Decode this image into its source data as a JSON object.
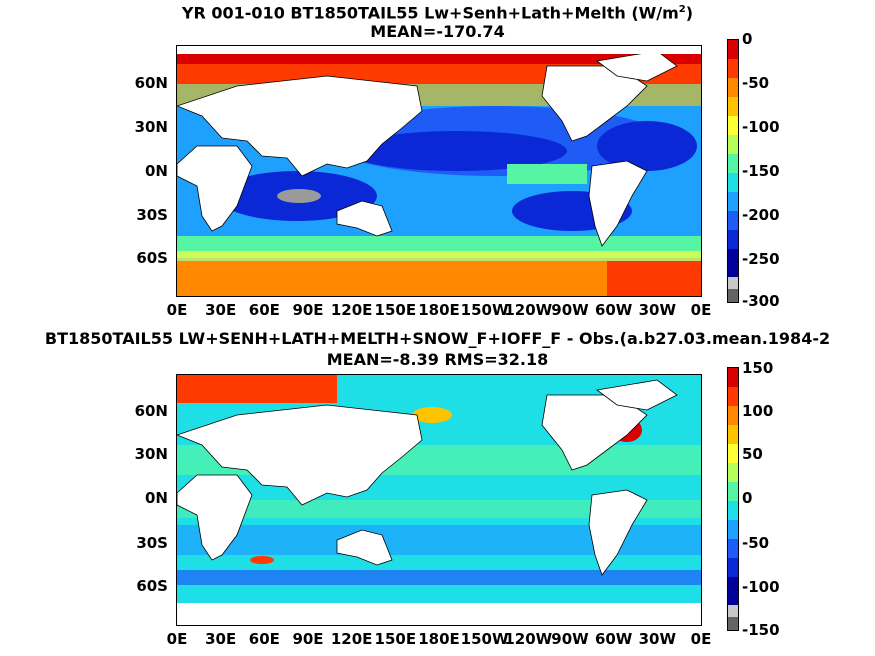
{
  "chart_data": [
    {
      "type": "heatmap",
      "title": "YR 001-010 BT1850TAIL55 Lw+Senh+Lath+Melth (W/m",
      "title_superscript": "2",
      "title_suffix": ")",
      "subtitle": "MEAN=-170.74",
      "xticks": [
        "0E",
        "30E",
        "60E",
        "90E",
        "120E",
        "150E",
        "180E",
        "150W",
        "120W",
        "90W",
        "60W",
        "30W",
        "0E"
      ],
      "yticks": [
        "60N",
        "30N",
        "0N",
        "30S",
        "60S"
      ],
      "colorbar_ticks": [
        "0",
        "-50",
        "-100",
        "-150",
        "-200",
        "-250",
        "-300"
      ],
      "colorbar_range": [
        -300,
        0
      ],
      "colors": [
        "#d90000",
        "#ff3a00",
        "#ff8800",
        "#ffc400",
        "#ffff33",
        "#b6ff5a",
        "#56f5a4",
        "#1fdfe6",
        "#1ea0ff",
        "#1e5cf5",
        "#0a28d6",
        "#00009a",
        "#c8c8c8",
        "#646464"
      ]
    },
    {
      "type": "heatmap",
      "title": "BT1850TAIL55 LW+SENH+LATH+MELTH+SNOW_F+IOFF_F - Obs.(a.b27.03.mean.1984-2",
      "subtitle": "MEAN=-8.39 RMS=32.18",
      "xticks": [
        "0E",
        "30E",
        "60E",
        "90E",
        "120E",
        "150E",
        "180E",
        "150W",
        "120W",
        "90W",
        "60W",
        "30W",
        "0E"
      ],
      "yticks": [
        "60N",
        "30N",
        "0N",
        "30S",
        "60S"
      ],
      "colorbar_ticks": [
        "150",
        "100",
        "50",
        "0",
        "-50",
        "-100",
        "-150"
      ],
      "colorbar_range": [
        -150,
        150
      ],
      "colors": [
        "#d90000",
        "#ff3a00",
        "#ff8800",
        "#ffc400",
        "#ffff33",
        "#b6ff5a",
        "#56f5a4",
        "#1fdfe6",
        "#1ea0ff",
        "#1e5cf5",
        "#0a28d6",
        "#00009a",
        "#c8c8c8",
        "#646464"
      ]
    }
  ]
}
